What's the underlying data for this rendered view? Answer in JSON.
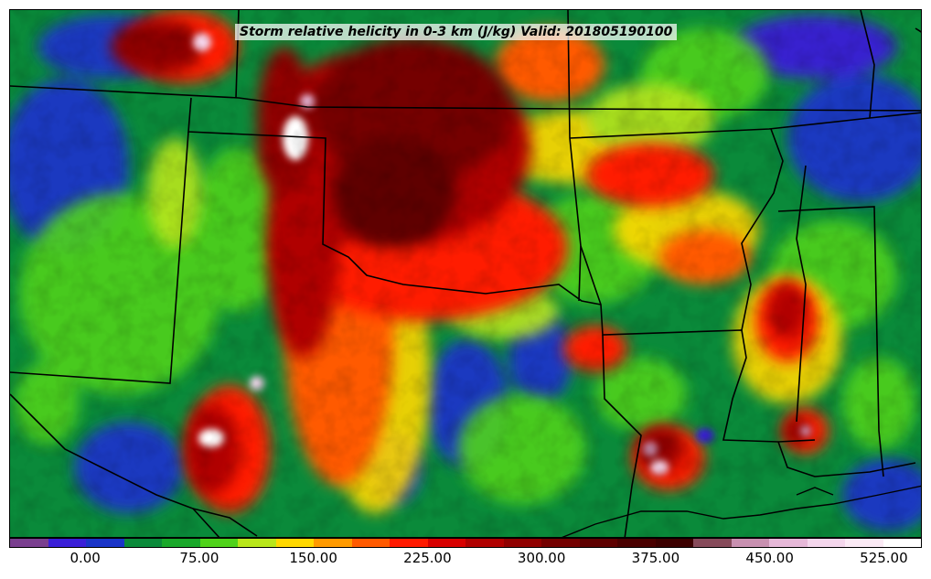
{
  "title": "Storm relative helicity in 0-3 km (J/kg) Valid: 201805190100",
  "colorbar": {
    "colors": [
      "#7a3f8f",
      "#3a1fd8",
      "#1a34c8",
      "#0a8a3a",
      "#19a82a",
      "#4fd21a",
      "#b8e61a",
      "#ffd800",
      "#ff9a00",
      "#ff5a00",
      "#ff1a00",
      "#d80000",
      "#b00000",
      "#900000",
      "#740000",
      "#5e0000",
      "#4a0000",
      "#3c0000",
      "#864a5a",
      "#c890b0",
      "#e6b8d8",
      "#f4d6ec",
      "#fbeaf5",
      "#ffffff"
    ],
    "tick_labels": [
      "0.00",
      "75.00",
      "150.00",
      "225.00",
      "300.00",
      "375.00",
      "450.00",
      "525.00"
    ]
  }
}
